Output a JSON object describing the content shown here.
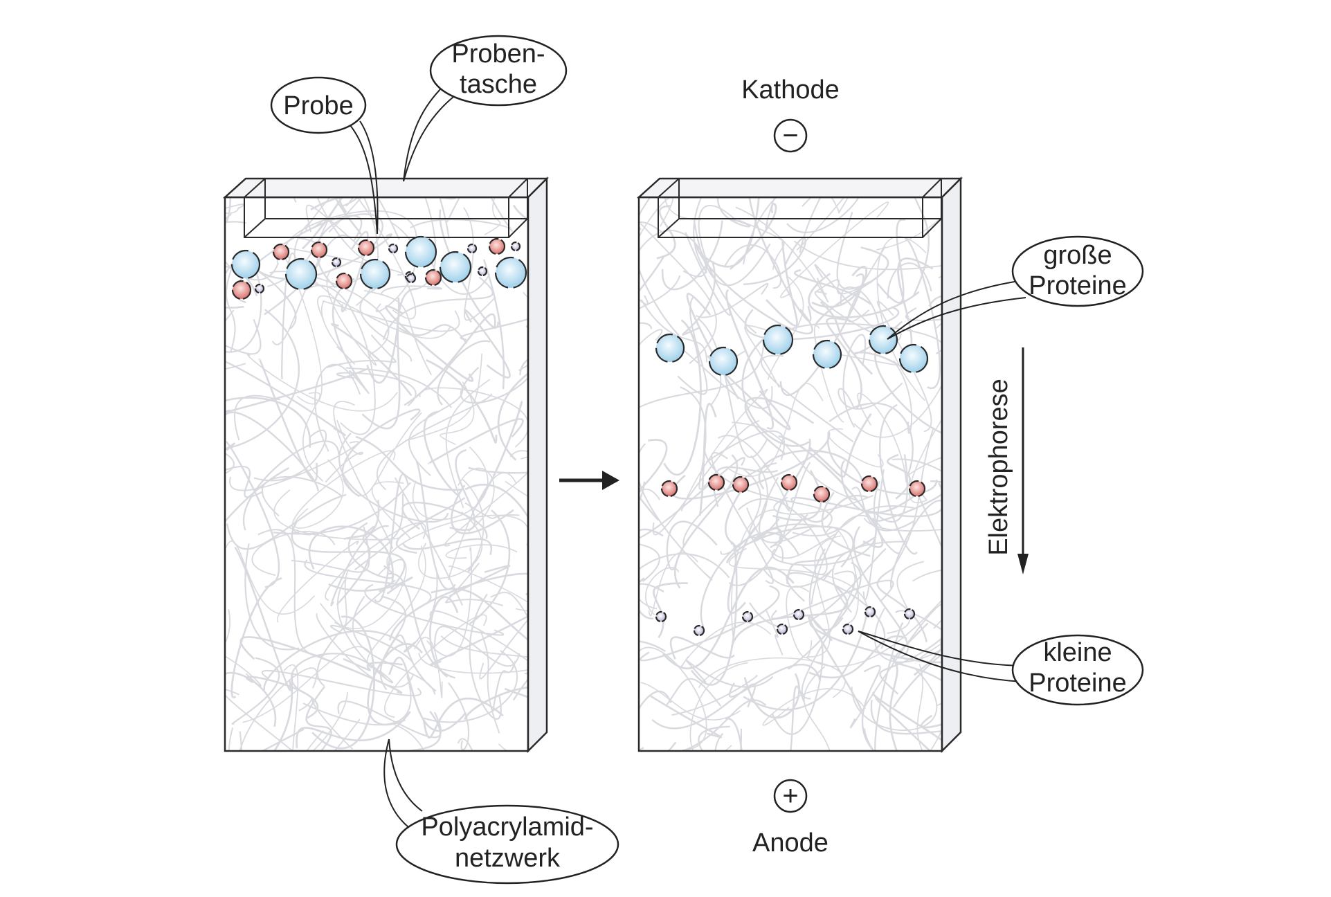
{
  "labels": {
    "probentasche_line1": "Proben-",
    "probentasche_line2": "tasche",
    "probe": "Probe",
    "kathode": "Kathode",
    "kathode_symbol": "−",
    "grosse_line1": "große",
    "grosse_line2": "Proteine",
    "elektrophorese": "Elektrophorese",
    "kleine_line1": "kleine",
    "kleine_line2": "Proteine",
    "anode": "Anode",
    "anode_symbol": "+",
    "polyacrylamid_line1": "Polyacrylamid-",
    "polyacrylamid_line2": "netzwerk"
  },
  "colors": {
    "outline": "#2a2a2a",
    "mesh": "#d9dadf",
    "large_protein": "#a9d6ec",
    "medium_protein": "#e58a86",
    "small_protein": "#c7bfdc",
    "text": "#222222"
  },
  "icons": {
    "process_arrow": "right-arrow-icon",
    "electrophoresis_arrow": "down-arrow-icon"
  }
}
